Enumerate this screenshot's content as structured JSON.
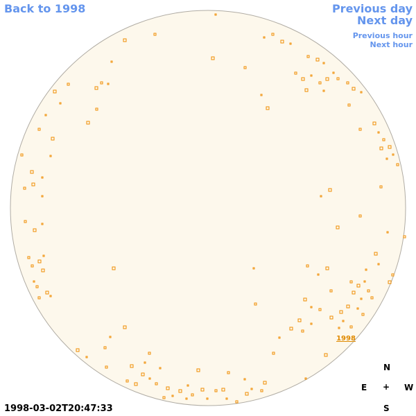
{
  "nav": {
    "back_to_year": "Back to 1998",
    "previous_day": "Previous day",
    "next_day": "Next day",
    "previous_hour": "Previous hour",
    "next_hour": "Next hour"
  },
  "image": {
    "region_label": "1998"
  },
  "compass": {
    "north": "N",
    "east": "E",
    "center": "+",
    "west": "W",
    "south": "S"
  },
  "timestamp": "1998-03-02T20:47:33"
}
